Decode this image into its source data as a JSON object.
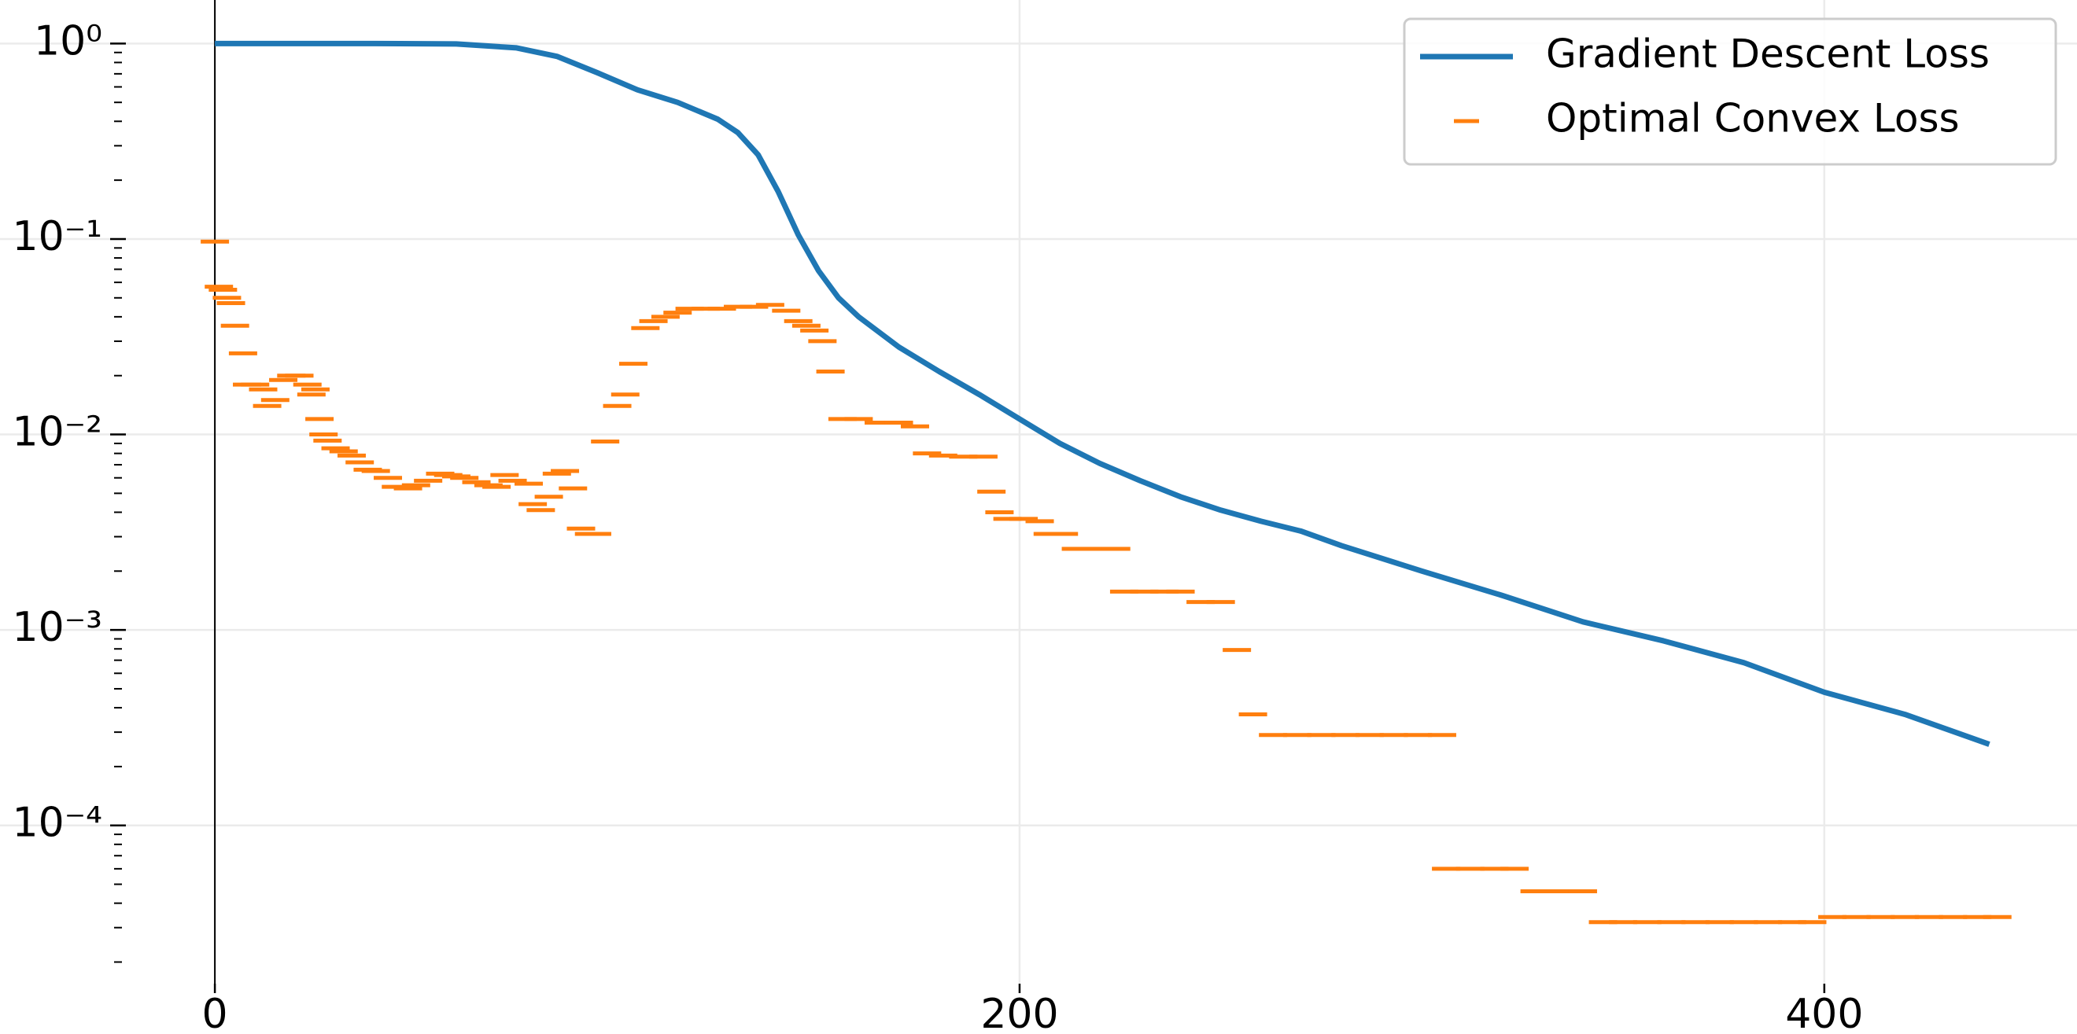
{
  "chart_data": {
    "type": "line",
    "yscale": "log",
    "grid": true,
    "legend": "upper right",
    "xlim": [
      -53.4,
      462.8
    ],
    "ylim": [
      1.55e-05,
      1.67
    ],
    "xticks": [
      0,
      200,
      400
    ],
    "yticks": [
      {
        "value": 1,
        "label": "10⁰"
      },
      {
        "value": 0.1,
        "label": "10⁻¹"
      },
      {
        "value": 0.01,
        "label": "10⁻²"
      },
      {
        "value": 0.001,
        "label": "10⁻³"
      },
      {
        "value": 0.0001,
        "label": "10⁻⁴"
      }
    ],
    "series": [
      {
        "name": "Gradient Descent Loss",
        "color": "#1f77b4",
        "mode": "line",
        "x": [
          0,
          20,
          40,
          60,
          75,
          85,
          95,
          105,
          115,
          125,
          130,
          135,
          140,
          145,
          150,
          155,
          160,
          170,
          180,
          190,
          200,
          210,
          220,
          230,
          240,
          250,
          260,
          270,
          280,
          300,
          320,
          340,
          360,
          380,
          400,
          420,
          441
        ],
        "values": [
          1,
          1,
          1,
          0.995,
          0.95,
          0.86,
          0.71,
          0.58,
          0.5,
          0.41,
          0.35,
          0.27,
          0.175,
          0.105,
          0.069,
          0.05,
          0.04,
          0.028,
          0.021,
          0.016,
          0.012,
          0.009,
          0.0071,
          0.0058,
          0.0048,
          0.0041,
          0.0036,
          0.0032,
          0.0027,
          0.002,
          0.0015,
          0.0011,
          0.00088,
          0.00068,
          0.00048,
          0.00037,
          0.00026
        ]
      },
      {
        "name": "Optimal Convex Loss",
        "color": "#ff7f0e",
        "mode": "markers",
        "x": [
          0,
          1,
          2,
          3,
          4,
          5,
          7,
          8,
          10,
          12,
          13,
          15,
          17,
          19,
          21,
          23,
          24,
          25,
          26,
          27,
          28,
          30,
          32,
          34,
          36,
          38,
          40,
          43,
          45,
          48,
          50,
          53,
          56,
          58,
          60,
          62,
          65,
          68,
          70,
          72,
          74,
          78,
          79,
          81,
          83,
          85,
          87,
          89,
          91,
          93,
          95,
          97,
          100,
          102,
          104,
          107,
          109,
          112,
          115,
          118,
          122,
          126,
          130,
          134,
          138,
          142,
          145,
          147,
          149,
          151,
          153,
          156,
          160,
          165,
          170,
          174,
          177,
          181,
          186,
          191,
          193,
          195,
          197,
          201,
          205,
          207,
          211,
          214,
          219,
          224,
          226,
          231,
          236,
          240,
          245,
          250,
          254,
          258,
          263,
          269,
          275,
          281,
          287,
          293,
          299,
          305,
          306,
          312,
          318,
          323,
          328,
          334,
          340,
          345,
          350,
          356,
          362,
          368,
          374,
          380,
          386,
          392,
          397,
          402,
          408,
          414,
          420,
          426,
          432,
          438,
          443
        ],
        "values": [
          0.097,
          0.057,
          0.055,
          0.05,
          0.047,
          0.036,
          0.026,
          0.018,
          0.018,
          0.017,
          0.014,
          0.015,
          0.019,
          0.02,
          0.02,
          0.018,
          0.016,
          0.017,
          0.012,
          0.01,
          0.0093,
          0.0085,
          0.0082,
          0.0078,
          0.0072,
          0.0066,
          0.0065,
          0.006,
          0.0054,
          0.0053,
          0.0055,
          0.0058,
          0.0063,
          0.0062,
          0.0061,
          0.006,
          0.0057,
          0.0055,
          0.0054,
          0.0062,
          0.0058,
          0.0056,
          0.0044,
          0.0041,
          0.0048,
          0.0063,
          0.0065,
          0.0053,
          0.0033,
          0.0031,
          0.0031,
          0.0092,
          0.014,
          0.016,
          0.023,
          0.035,
          0.038,
          0.04,
          0.042,
          0.044,
          0.044,
          0.044,
          0.045,
          0.045,
          0.046,
          0.043,
          0.038,
          0.036,
          0.034,
          0.03,
          0.021,
          0.012,
          0.012,
          0.0115,
          0.0115,
          0.011,
          0.008,
          0.0078,
          0.0077,
          0.0077,
          0.0051,
          0.004,
          0.0037,
          0.0037,
          0.0036,
          0.0031,
          0.0031,
          0.0026,
          0.0026,
          0.0026,
          0.00157,
          0.00157,
          0.00157,
          0.00157,
          0.00139,
          0.00139,
          0.00079,
          0.00037,
          0.00029,
          0.00029,
          0.00029,
          0.00029,
          0.00029,
          0.00029,
          0.00029,
          0.00029,
          6e-05,
          6e-05,
          6e-05,
          6e-05,
          4.6e-05,
          4.6e-05,
          4.6e-05,
          3.2e-05,
          3.2e-05,
          3.2e-05,
          3.2e-05,
          3.2e-05,
          3.2e-05,
          3.2e-05,
          3.2e-05,
          3.2e-05,
          3.2e-05,
          3.4e-05,
          3.4e-05,
          3.4e-05,
          3.4e-05,
          3.4e-05,
          3.4e-05,
          3.4e-05,
          3.4e-05
        ]
      }
    ]
  }
}
